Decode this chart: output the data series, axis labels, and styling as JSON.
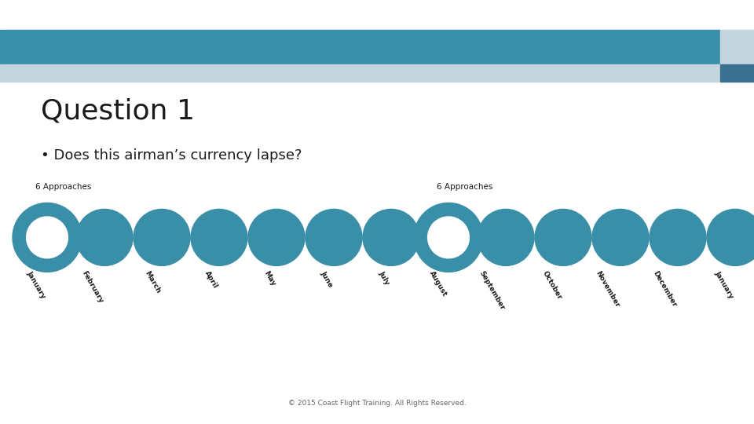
{
  "title": "Question 1",
  "bullet": "• Does this airman’s currency lapse?",
  "months": [
    "January",
    "February",
    "March",
    "April",
    "May",
    "June",
    "July",
    "August",
    "September",
    "October",
    "November",
    "December",
    "January"
  ],
  "ring_indices": [
    0,
    7
  ],
  "label1": "6 Approaches",
  "label2": "6 Approaches",
  "header_teal": "#3a8fa8",
  "header_light": "#c5d5e0",
  "header_accent_right_top": "#c5d5e0",
  "header_accent_right_bot": "#3a7090",
  "bg_color": "#ffffff",
  "footer_text": "© 2015 Coast Flight Training. All Rights Reserved.",
  "circle_color": "#3a8fa8",
  "text_color": "#1a1a1a",
  "fig_w": 9.6,
  "fig_h": 5.4
}
